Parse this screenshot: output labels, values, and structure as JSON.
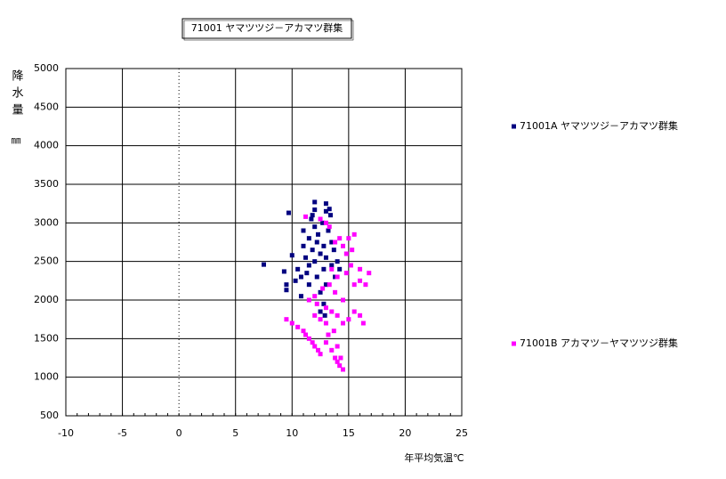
{
  "chart_data": {
    "type": "scatter",
    "title": "71001 ヤマツツジ－アカマツ群集",
    "x_label": "年平均気温℃",
    "y_label": "降水量",
    "y_unit": "㎜",
    "xlim": [
      -10,
      25
    ],
    "xticks": [
      -10,
      -5,
      0,
      5,
      10,
      15,
      20,
      25
    ],
    "ylim": [
      500,
      5000
    ],
    "yticks": [
      500,
      1000,
      1500,
      2000,
      2500,
      3000,
      3500,
      4000,
      4500,
      5000
    ],
    "grid": true,
    "series": [
      {
        "name": "71001A ヤマツツジ－アカマツ群集",
        "color": "#000080",
        "x": [
          9.7,
          7.5,
          9.3,
          9.5,
          9.5,
          10.0,
          10.3,
          10.5,
          10.8,
          11,
          11,
          11.2,
          11.3,
          11.5,
          11.5,
          11.7,
          11.8,
          12,
          12,
          12,
          12,
          12.2,
          12.3,
          12.5,
          12.5,
          12.7,
          12.8,
          12.8,
          13,
          13,
          13,
          13,
          13.2,
          13.3,
          13.5,
          13.5,
          13.7,
          13.8,
          14,
          14.2,
          12.5,
          12.8,
          11.5,
          10.8,
          11.8,
          12.2,
          13.4,
          12.9
        ],
        "values": [
          3130,
          2460,
          2370,
          2200,
          2130,
          2580,
          2250,
          2400,
          2050,
          2900,
          2700,
          2550,
          2350,
          2800,
          2450,
          3050,
          2650,
          3270,
          3170,
          2950,
          2500,
          2300,
          2850,
          2600,
          2100,
          3000,
          2700,
          2400,
          3250,
          3150,
          2550,
          2200,
          2900,
          3180,
          2750,
          2450,
          2650,
          2300,
          2500,
          2400,
          1850,
          1950,
          2200,
          2300,
          3100,
          2750,
          3100,
          1800
        ]
      },
      {
        "name": "71001B アカマツ－ヤマツツジ群集",
        "color": "#ff00ff",
        "x": [
          9.5,
          10,
          10.5,
          11,
          11.2,
          11.5,
          11.8,
          12,
          12.3,
          12.5,
          13,
          13.2,
          13.5,
          13.8,
          14,
          14.2,
          14.5,
          14.3,
          14.0,
          13.7,
          13,
          12.5,
          12,
          12.2,
          13,
          13.5,
          14,
          14.5,
          15,
          15.5,
          16,
          16.3,
          14.5,
          13.8,
          13.3,
          14,
          14.8,
          15.2,
          15.5,
          16,
          16.5,
          16.8,
          16,
          15.3,
          14.8,
          14.5,
          15,
          15.5,
          14.2,
          13.8,
          13.3,
          13,
          12.5,
          11.2,
          12.7,
          13.5,
          11.5,
          12
        ],
        "values": [
          1750,
          1700,
          1650,
          1600,
          1550,
          1500,
          1450,
          1400,
          1350,
          1300,
          1450,
          1550,
          1350,
          1250,
          1200,
          1150,
          1100,
          1250,
          1400,
          1600,
          1700,
          1750,
          1800,
          1950,
          1900,
          1850,
          1800,
          1700,
          1750,
          1850,
          1800,
          1700,
          2000,
          2100,
          2200,
          2300,
          2350,
          2450,
          2200,
          2250,
          2200,
          2350,
          2400,
          2650,
          2600,
          2700,
          2800,
          2850,
          2800,
          2750,
          2950,
          3000,
          3050,
          3080,
          2150,
          2400,
          2000,
          2050
        ]
      }
    ]
  }
}
